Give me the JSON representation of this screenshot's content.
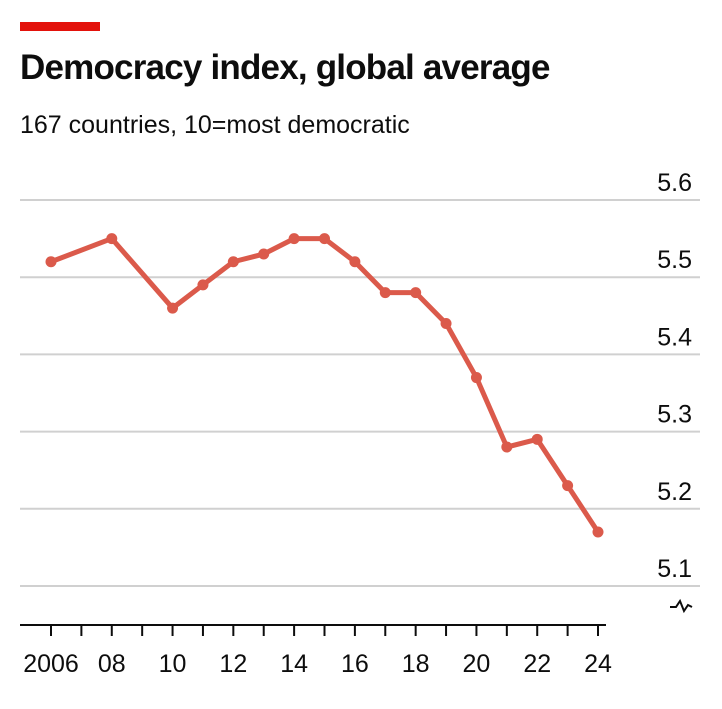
{
  "title": "Democracy index, global average",
  "subtitle": "167 countries, 10=most democratic",
  "colors": {
    "accent": "#e3120b",
    "line": "#db5a4b",
    "grid": "#d0d0d0",
    "axis": "#0d0d0d"
  },
  "chart_data": {
    "type": "line",
    "title": "Democracy index, global average",
    "subtitle": "167 countries, 10=most democratic",
    "xlabel": "",
    "ylabel": "",
    "x": [
      2006,
      2008,
      2010,
      2011,
      2012,
      2013,
      2014,
      2015,
      2016,
      2017,
      2018,
      2019,
      2020,
      2021,
      2022,
      2023,
      2024
    ],
    "series": [
      {
        "values": [
          5.52,
          5.55,
          5.46,
          5.49,
          5.52,
          5.53,
          5.55,
          5.55,
          5.52,
          5.48,
          5.48,
          5.44,
          5.37,
          5.28,
          5.29,
          5.23,
          5.17
        ]
      }
    ],
    "xlim": [
      2006,
      2024
    ],
    "ylim": [
      5.1,
      5.6
    ],
    "x_ticks": [
      2006,
      2007,
      2008,
      2009,
      2010,
      2011,
      2012,
      2013,
      2014,
      2015,
      2016,
      2017,
      2018,
      2019,
      2020,
      2021,
      2022,
      2023,
      2024
    ],
    "x_tick_labels": [
      {
        "year": 2006,
        "label": "2006"
      },
      {
        "year": 2008,
        "label": "08"
      },
      {
        "year": 2010,
        "label": "10"
      },
      {
        "year": 2012,
        "label": "12"
      },
      {
        "year": 2014,
        "label": "14"
      },
      {
        "year": 2016,
        "label": "16"
      },
      {
        "year": 2018,
        "label": "18"
      },
      {
        "year": 2020,
        "label": "20"
      },
      {
        "year": 2022,
        "label": "22"
      },
      {
        "year": 2024,
        "label": "24"
      }
    ],
    "y_ticks": [
      {
        "value": 5.1,
        "label": "5.1"
      },
      {
        "value": 5.2,
        "label": "5.2"
      },
      {
        "value": 5.3,
        "label": "5.3"
      },
      {
        "value": 5.4,
        "label": "5.4"
      },
      {
        "value": 5.5,
        "label": "5.5"
      },
      {
        "value": 5.6,
        "label": "5.6"
      }
    ],
    "y_axis_side": "right",
    "y_axis_break": true,
    "grid": true,
    "markers": true,
    "legend": "none"
  }
}
